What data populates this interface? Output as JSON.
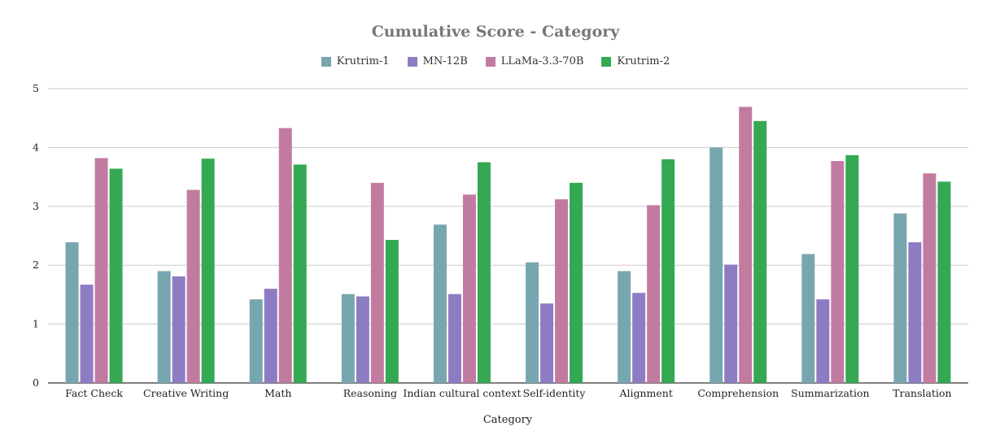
{
  "chart_data": {
    "type": "bar",
    "title": "Cumulative Score - Category",
    "xlabel": "Category",
    "ylabel": "",
    "ylim": [
      0,
      5
    ],
    "yticks": [
      0,
      1,
      2,
      3,
      4,
      5
    ],
    "grid": true,
    "legend_position": "top",
    "categories": [
      "Fact Check",
      "Creative Writing",
      "Math",
      "Reasoning",
      "Indian cultural context",
      "Self-identity",
      "Alignment",
      "Comprehension",
      "Summarization",
      "Translation"
    ],
    "series": [
      {
        "name": "Krutrim-1",
        "color": "#78A6AE",
        "values": [
          2.39,
          1.9,
          1.42,
          1.51,
          2.69,
          2.05,
          1.9,
          4.0,
          2.19,
          2.88
        ]
      },
      {
        "name": "MN-12B",
        "color": "#8E7CC3",
        "values": [
          1.67,
          1.81,
          1.6,
          1.47,
          1.51,
          1.35,
          1.53,
          2.01,
          1.42,
          2.39
        ]
      },
      {
        "name": "LLaMa-3.3-70B",
        "color": "#C27BA0",
        "values": [
          3.82,
          3.28,
          4.33,
          3.4,
          3.2,
          3.12,
          3.02,
          4.69,
          3.77,
          3.56
        ]
      },
      {
        "name": "Krutrim-2",
        "color": "#34A853",
        "values": [
          3.64,
          3.81,
          3.71,
          2.43,
          3.75,
          3.4,
          3.8,
          4.45,
          3.87,
          3.42
        ]
      }
    ]
  }
}
